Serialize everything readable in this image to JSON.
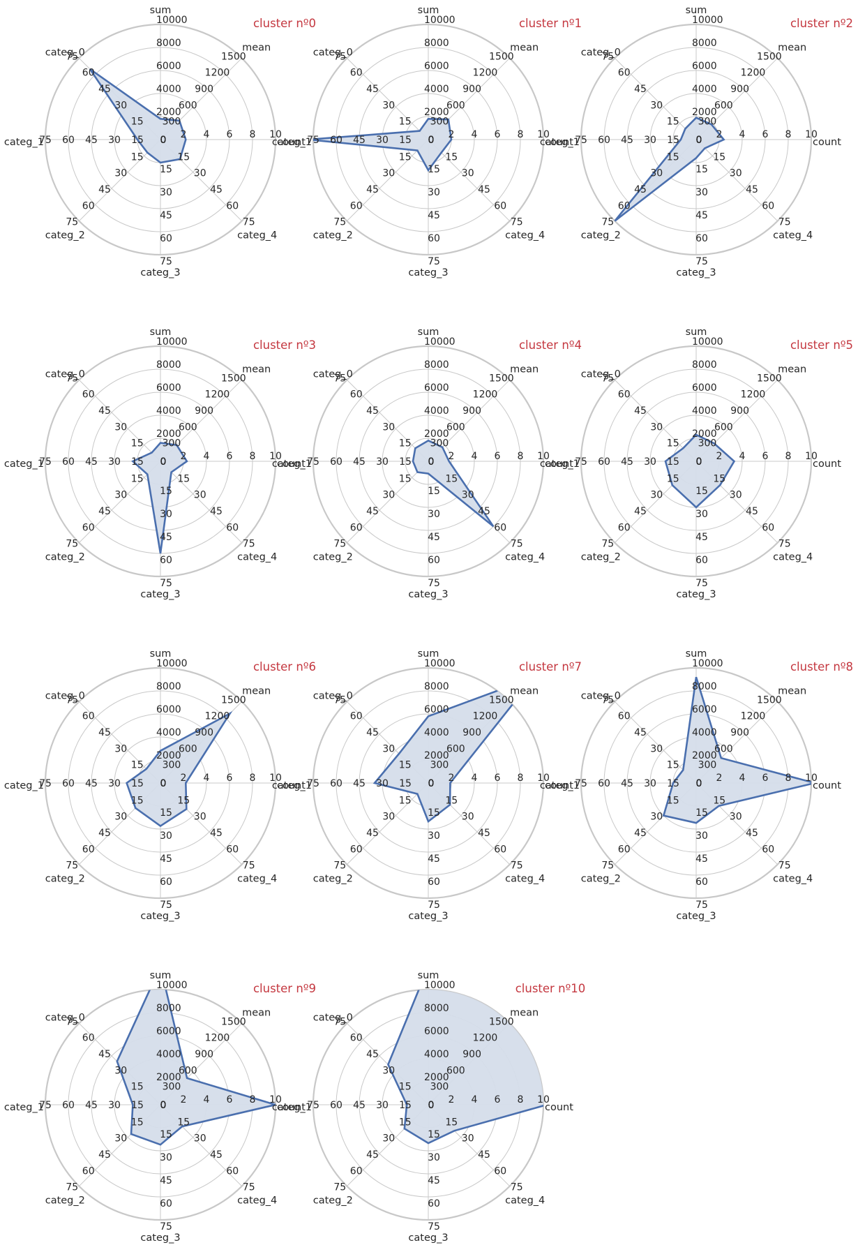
{
  "chart_data": {
    "type": "radar",
    "axes": [
      "sum",
      "mean",
      "count",
      "categ_4",
      "categ_3",
      "categ_2",
      "categ_1",
      "categ_0"
    ],
    "scales": {
      "sum": {
        "max": 10000,
        "ticks": [
          "0",
          "2000",
          "4000",
          "6000",
          "8000",
          "10000"
        ]
      },
      "mean": {
        "max": 1500,
        "ticks": [
          "0",
          "300",
          "600",
          "900",
          "1200",
          "1500"
        ]
      },
      "count": {
        "max": 10,
        "ticks": [
          "0",
          "2",
          "4",
          "6",
          "8",
          "10"
        ]
      },
      "categ_4": {
        "max": 75,
        "ticks": [
          "0",
          "15",
          "30",
          "45",
          "60",
          "75"
        ]
      },
      "categ_3": {
        "max": 75,
        "ticks": [
          "0",
          "15",
          "30",
          "45",
          "60",
          "75"
        ]
      },
      "categ_2": {
        "max": 75,
        "ticks": [
          "0",
          "15",
          "30",
          "45",
          "60",
          "75"
        ]
      },
      "categ_1": {
        "max": 75,
        "ticks": [
          "0",
          "15",
          "30",
          "45",
          "60",
          "75"
        ]
      },
      "categ_0": {
        "max": 75,
        "ticks": [
          "0",
          "15",
          "30",
          "45",
          "60",
          "75"
        ]
      }
    },
    "grid": true,
    "line_color": "#4a6fae",
    "fill_color": "#d5ddea",
    "ring_color": "#c8c8c8",
    "title_color": "#c4373f",
    "clusters": [
      {
        "title": "cluster nº0",
        "values": [
          1800,
          350,
          2.2,
          18,
          15,
          12,
          15,
          65
        ]
      },
      {
        "title": "cluster nº1",
        "values": [
          1800,
          370,
          2.0,
          12,
          20,
          10,
          78,
          8
        ]
      },
      {
        "title": "cluster nº2",
        "values": [
          1900,
          280,
          2.4,
          8,
          12,
          75,
          10,
          10
        ]
      },
      {
        "title": "cluster nº3",
        "values": [
          1600,
          300,
          2.3,
          10,
          60,
          12,
          18,
          8
        ]
      },
      {
        "title": "cluster nº4",
        "values": [
          1800,
          260,
          1.8,
          60,
          8,
          10,
          10,
          12
        ]
      },
      {
        "title": "cluster nº5",
        "values": [
          2300,
          330,
          3.3,
          22,
          30,
          22,
          20,
          12
        ]
      },
      {
        "title": "cluster nº6",
        "values": [
          2800,
          1280,
          2.2,
          24,
          28,
          23,
          22,
          13
        ]
      },
      {
        "title": "cluster nº7",
        "values": [
          5800,
          1950,
          1.9,
          20,
          25,
          10,
          35,
          27
        ]
      },
      {
        "title": "cluster nº8",
        "values": [
          9200,
          460,
          10.3,
          21,
          26,
          30,
          15,
          12
        ]
      },
      {
        "title": "cluster nº9",
        "values": [
          12000,
          490,
          10.0,
          20,
          26,
          27,
          18,
          40
        ]
      },
      {
        "title": "cluster nº10",
        "values": [
          12000,
          2500,
          10.3,
          24,
          25,
          22,
          14,
          37
        ]
      }
    ]
  }
}
